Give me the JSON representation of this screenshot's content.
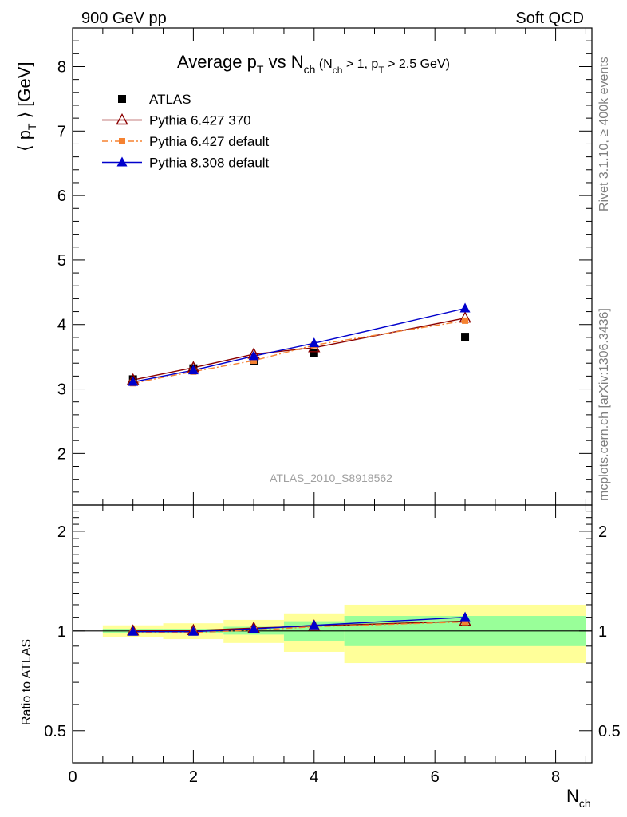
{
  "header": {
    "left": "900 GeV pp",
    "right": "Soft QCD"
  },
  "side_labels": {
    "rivet": "Rivet 3.1.10, ≥ 400k events",
    "mcplots": "mcplots.cern.ch [arXiv:1306.3436]"
  },
  "chart_data": [
    {
      "panel": "main",
      "type": "line",
      "title": "Average pT vs Nch (Nch > 1, pT > 2.5 GeV)",
      "ylabel": "⟨ pT ⟩ [GeV]",
      "xlabel": "Nch",
      "analysis_label": "ATLAS_2010_S8918562",
      "xlim": [
        0,
        8.6
      ],
      "ylim": [
        1.2,
        8.6
      ],
      "yticks": [
        2,
        3,
        4,
        5,
        6,
        7,
        8
      ],
      "ytick_labels": [
        "2",
        "3",
        "4",
        "5",
        "6",
        "7",
        "8"
      ],
      "legend_position": "top-left",
      "series": [
        {
          "name": "ATLAS",
          "color": "#000000",
          "marker": "square",
          "line": "none",
          "x": [
            1,
            2,
            3,
            4,
            6.5
          ],
          "y": [
            3.15,
            3.32,
            3.44,
            3.56,
            3.81
          ]
        },
        {
          "name": "Pythia 6.427 370",
          "color": "#8b0000",
          "marker": "open-triangle",
          "line": "solid",
          "x": [
            1,
            2,
            3,
            4,
            6.5
          ],
          "y": [
            3.14,
            3.33,
            3.54,
            3.64,
            4.1
          ]
        },
        {
          "name": "Pythia 6.427 default",
          "color": "#f58231",
          "marker": "filled-square-small",
          "line": "dashdot",
          "x": [
            1,
            2,
            3,
            4,
            6.5
          ],
          "y": [
            3.09,
            3.27,
            3.44,
            3.68,
            4.06
          ]
        },
        {
          "name": "Pythia 8.308 default",
          "color": "#0000cc",
          "marker": "filled-triangle",
          "line": "solid",
          "x": [
            1,
            2,
            3,
            4,
            6.5
          ],
          "y": [
            3.11,
            3.29,
            3.51,
            3.71,
            4.25
          ]
        }
      ]
    },
    {
      "panel": "ratio",
      "type": "line",
      "ylabel": "Ratio to ATLAS",
      "xlabel": "Nch",
      "xlim": [
        0,
        8.6
      ],
      "ylim": [
        0.4,
        2.4
      ],
      "yticks": [
        0.5,
        1,
        2
      ],
      "ytick_labels": [
        "0.5",
        "1",
        "2"
      ],
      "xticks": [
        0,
        2,
        4,
        6,
        8
      ],
      "xtick_labels": [
        "0",
        "2",
        "4",
        "6",
        "8"
      ],
      "bands": [
        {
          "x": [
            0.5,
            1.5
          ],
          "inner": [
            0.985,
            1.015
          ],
          "outer": [
            0.96,
            1.04
          ]
        },
        {
          "x": [
            1.5,
            2.5
          ],
          "inner": [
            0.985,
            1.015
          ],
          "outer": [
            0.945,
            1.055
          ]
        },
        {
          "x": [
            2.5,
            3.5
          ],
          "inner": [
            0.975,
            1.03
          ],
          "outer": [
            0.92,
            1.08
          ]
        },
        {
          "x": [
            3.5,
            4.5
          ],
          "inner": [
            0.93,
            1.07
          ],
          "outer": [
            0.865,
            1.13
          ]
        },
        {
          "x": [
            4.5,
            8.5
          ],
          "inner": [
            0.9,
            1.11
          ],
          "outer": [
            0.8,
            1.2
          ]
        }
      ],
      "series": [
        {
          "name": "Pythia 6.427 370",
          "color": "#8b0000",
          "x": [
            1,
            2,
            3,
            4,
            6.5
          ],
          "y": [
            1.0,
            1.003,
            1.02,
            1.035,
            1.07
          ]
        },
        {
          "name": "Pythia 6.427 default",
          "color": "#f58231",
          "x": [
            1,
            2,
            3,
            4,
            6.5
          ],
          "y": [
            0.99,
            0.99,
            1.005,
            1.03,
            1.065
          ]
        },
        {
          "name": "Pythia 8.308 default",
          "color": "#0000cc",
          "x": [
            1,
            2,
            3,
            4,
            6.5
          ],
          "y": [
            0.995,
            0.995,
            1.015,
            1.04,
            1.1
          ]
        }
      ]
    }
  ]
}
